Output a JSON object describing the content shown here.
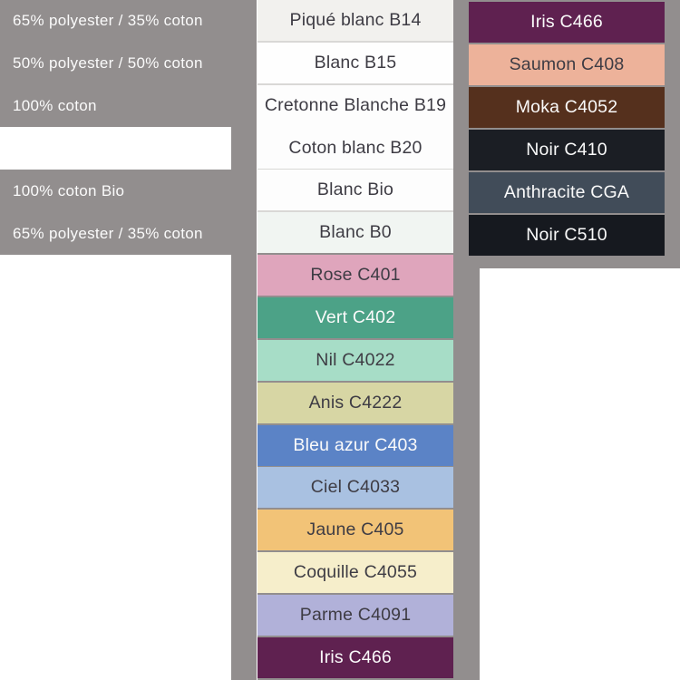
{
  "page": {
    "background": "#ffffff",
    "gray": "#928E8E",
    "light_divider": "#D9D8D6",
    "dark_text": "#3E3C44",
    "light_text": "#FAFAFA"
  },
  "left_panel": {
    "rows": [
      {
        "label": "65% polyester / 35% coton",
        "type": "text"
      },
      {
        "label": "50% polyester / 50% coton",
        "type": "text"
      },
      {
        "label": "100% coton",
        "type": "text"
      },
      {
        "label": "",
        "type": "blank-white"
      },
      {
        "label": "100% coton Bio",
        "type": "text"
      },
      {
        "label": "65% polyester / 35% coton",
        "type": "text"
      }
    ]
  },
  "middle_column": {
    "swatches": [
      {
        "id": "pique-blanc-b14",
        "label": "Piqué blanc B14",
        "bg": "#F2F1EE",
        "text_color": "#3E3C44",
        "divider": "light",
        "texture": true
      },
      {
        "id": "blanc-b15",
        "label": "Blanc B15",
        "bg": "#FEFEFE",
        "text_color": "#3E3C44",
        "divider": "light",
        "texture": false
      },
      {
        "id": "cretonne-blanche-b19",
        "label": "Cretonne Blanche B19",
        "bg": "#FDFDFD",
        "text_color": "#3E3C44",
        "divider": "none",
        "texture": false
      },
      {
        "id": "coton-blanc-b20",
        "label": "Coton blanc B20",
        "bg": "#FDFDFD",
        "text_color": "#3E3C44",
        "divider": "light",
        "texture": false
      },
      {
        "id": "blanc-bio",
        "label": "Blanc Bio",
        "bg": "#FDFDFD",
        "text_color": "#3E3C44",
        "divider": "light",
        "texture": false
      },
      {
        "id": "blanc-b0",
        "label": "Blanc B0",
        "bg": "#F1F5F2",
        "text_color": "#3E3C44",
        "divider": "gray",
        "texture": false
      },
      {
        "id": "rose-c401",
        "label": "Rose C401",
        "bg": "#DFA5BC",
        "text_color": "#3E3C44",
        "divider": "gray",
        "texture": false
      },
      {
        "id": "vert-c402",
        "label": "Vert C402",
        "bg": "#4CA287",
        "text_color": "#FAFAFA",
        "divider": "gray",
        "texture": false
      },
      {
        "id": "nil-c4022",
        "label": "Nil C4022",
        "bg": "#A7DDC7",
        "text_color": "#3E3C44",
        "divider": "gray",
        "texture": false
      },
      {
        "id": "anis-c4222",
        "label": "Anis C4222",
        "bg": "#D7D6A4",
        "text_color": "#3E3C44",
        "divider": "gray",
        "texture": false
      },
      {
        "id": "bleu-azur-c403",
        "label": "Bleu azur C403",
        "bg": "#5B83C6",
        "text_color": "#FAFAFA",
        "divider": "gray",
        "texture": false
      },
      {
        "id": "ciel-c4033",
        "label": "Ciel C4033",
        "bg": "#A9C1E1",
        "text_color": "#3E3C44",
        "divider": "gray",
        "texture": false
      },
      {
        "id": "jaune-c405",
        "label": "Jaune C405",
        "bg": "#F2C377",
        "text_color": "#3E3C44",
        "divider": "gray",
        "texture": true
      },
      {
        "id": "coquille-c4055",
        "label": "Coquille C4055",
        "bg": "#F6EECB",
        "text_color": "#3E3C44",
        "divider": "gray",
        "texture": false
      },
      {
        "id": "parme-c4091",
        "label": "Parme C4091",
        "bg": "#B1B1D9",
        "text_color": "#3E3C44",
        "divider": "gray",
        "texture": false
      },
      {
        "id": "iris-c466",
        "label": "Iris C466",
        "bg": "#5F2150",
        "text_color": "#FAFAFA",
        "divider": "none",
        "texture": false
      }
    ]
  },
  "right_column": {
    "swatches": [
      {
        "id": "iris-c466",
        "label": "Iris C466",
        "bg": "#5F2150",
        "text_color": "#FAFAFA"
      },
      {
        "id": "saumon-c408",
        "label": "Saumon C408",
        "bg": "#EDB29A",
        "text_color": "#3E3C44"
      },
      {
        "id": "moka-c4052",
        "label": "Moka C4052",
        "bg": "#55301D",
        "text_color": "#FAFAFA"
      },
      {
        "id": "noir-c410",
        "label": "Noir C410",
        "bg": "#1B1E24",
        "text_color": "#FAFAFA"
      },
      {
        "id": "anthracite-cga",
        "label": "Anthracite CGA",
        "bg": "#414C59",
        "text_color": "#FAFAFA"
      },
      {
        "id": "noir-c510",
        "label": "Noir C510",
        "bg": "#16191F",
        "text_color": "#FAFAFA"
      }
    ]
  }
}
